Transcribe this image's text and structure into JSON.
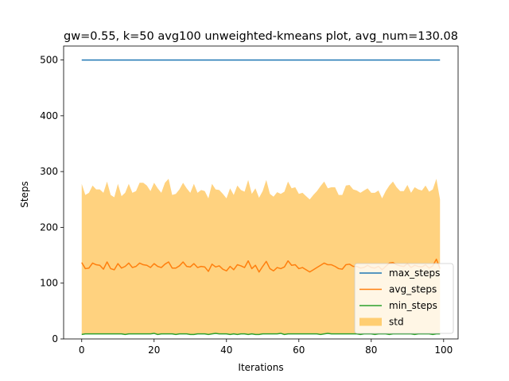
{
  "chart_data": {
    "type": "line",
    "title": "gw=0.55, k=50 avg100 unweighted-kmeans plot, avg_num=130.08",
    "xlabel": "Iterations",
    "ylabel": "Steps",
    "xlim": [
      -5,
      104
    ],
    "ylim": [
      0,
      525
    ],
    "xticks": [
      0,
      20,
      40,
      60,
      80,
      100
    ],
    "yticks": [
      0,
      100,
      200,
      300,
      400,
      500
    ],
    "xtick_labels": [
      "0",
      "20",
      "40",
      "60",
      "80",
      "100"
    ],
    "ytick_labels": [
      "0",
      "100",
      "200",
      "300",
      "400",
      "500"
    ],
    "grid": false,
    "legend_position": "lower-right",
    "x_start": 0,
    "series": [
      {
        "name": "max_steps",
        "kind": "line",
        "color": "#1f77b4",
        "values": [
          500,
          500,
          500,
          500,
          500,
          500,
          500,
          500,
          500,
          500,
          500,
          500,
          500,
          500,
          500,
          500,
          500,
          500,
          500,
          500,
          500,
          500,
          500,
          500,
          500,
          500,
          500,
          500,
          500,
          500,
          500,
          500,
          500,
          500,
          500,
          500,
          500,
          500,
          500,
          500,
          500,
          500,
          500,
          500,
          500,
          500,
          500,
          500,
          500,
          500,
          500,
          500,
          500,
          500,
          500,
          500,
          500,
          500,
          500,
          500,
          500,
          500,
          500,
          500,
          500,
          500,
          500,
          500,
          500,
          500,
          500,
          500,
          500,
          500,
          500,
          500,
          500,
          500,
          500,
          500,
          500,
          500,
          500,
          500,
          500,
          500,
          500,
          500,
          500,
          500,
          500,
          500,
          500,
          500,
          500,
          500,
          500,
          500,
          500,
          500
        ]
      },
      {
        "name": "avg_steps",
        "kind": "line",
        "color": "#ff7f0e",
        "values": [
          137,
          126,
          127,
          136,
          133,
          132,
          125,
          138,
          126,
          124,
          135,
          127,
          130,
          136,
          128,
          130,
          136,
          133,
          132,
          128,
          135,
          130,
          128,
          134,
          138,
          127,
          127,
          131,
          138,
          130,
          129,
          135,
          128,
          130,
          129,
          121,
          134,
          129,
          131,
          125,
          122,
          130,
          124,
          133,
          131,
          128,
          140,
          126,
          132,
          120,
          130,
          139,
          126,
          122,
          128,
          126,
          129,
          140,
          132,
          133,
          126,
          128,
          124,
          120,
          124,
          128,
          132,
          136,
          133,
          133,
          130,
          126,
          125,
          133,
          134,
          130,
          130,
          127,
          128,
          132,
          128,
          127,
          130,
          124,
          130,
          136,
          137,
          133,
          131,
          130,
          135,
          128,
          132,
          130,
          129,
          133,
          127,
          131,
          143,
          126
        ]
      },
      {
        "name": "min_steps",
        "kind": "line",
        "color": "#2ca02c",
        "values": [
          8,
          9,
          9,
          9,
          9,
          9,
          9,
          9,
          9,
          9,
          9,
          9,
          8,
          9,
          9,
          9,
          9,
          9,
          9,
          9,
          10,
          8,
          9,
          9,
          9,
          9,
          8,
          9,
          9,
          9,
          8,
          8,
          9,
          9,
          9,
          8,
          9,
          10,
          9,
          9,
          9,
          8,
          9,
          8,
          9,
          9,
          8,
          9,
          8,
          8,
          9,
          9,
          9,
          9,
          9,
          10,
          8,
          9,
          9,
          9,
          9,
          9,
          9,
          9,
          9,
          9,
          8,
          9,
          10,
          9,
          9,
          9,
          9,
          9,
          9,
          9,
          9,
          8,
          9,
          9,
          9,
          8,
          9,
          9,
          9,
          8,
          9,
          9,
          9,
          9,
          9,
          9,
          8,
          9,
          9,
          9,
          9,
          8,
          9,
          9
        ]
      },
      {
        "name": "std",
        "kind": "band",
        "color": "#ffa500",
        "opacity": 0.5,
        "upper": [
          278,
          258,
          262,
          275,
          268,
          268,
          262,
          282,
          258,
          254,
          278,
          256,
          262,
          278,
          262,
          265,
          280,
          280,
          275,
          265,
          280,
          270,
          262,
          280,
          287,
          258,
          260,
          268,
          280,
          270,
          262,
          278,
          262,
          267,
          265,
          252,
          278,
          268,
          267,
          260,
          252,
          270,
          258,
          275,
          267,
          264,
          285,
          260,
          270,
          253,
          265,
          285,
          260,
          255,
          263,
          260,
          264,
          282,
          270,
          272,
          260,
          262,
          256,
          250,
          258,
          265,
          274,
          282,
          270,
          272,
          272,
          258,
          258,
          275,
          276,
          268,
          266,
          262,
          266,
          270,
          262,
          262,
          266,
          252,
          265,
          275,
          282,
          272,
          265,
          265,
          276,
          262,
          272,
          268,
          266,
          275,
          264,
          268,
          287,
          250
        ],
        "lower": [
          8,
          9,
          9,
          9,
          9,
          9,
          9,
          9,
          9,
          9,
          9,
          9,
          8,
          9,
          9,
          9,
          9,
          9,
          9,
          9,
          10,
          8,
          9,
          9,
          9,
          9,
          8,
          9,
          9,
          9,
          8,
          8,
          9,
          9,
          9,
          8,
          9,
          10,
          9,
          9,
          9,
          8,
          9,
          8,
          9,
          9,
          8,
          9,
          8,
          8,
          9,
          9,
          9,
          9,
          9,
          10,
          8,
          9,
          9,
          9,
          9,
          9,
          9,
          9,
          9,
          9,
          8,
          9,
          10,
          9,
          9,
          9,
          9,
          9,
          9,
          9,
          9,
          8,
          9,
          9,
          9,
          8,
          9,
          9,
          9,
          8,
          9,
          9,
          9,
          9,
          9,
          9,
          8,
          9,
          9,
          9,
          9,
          8,
          9,
          9
        ]
      }
    ]
  }
}
